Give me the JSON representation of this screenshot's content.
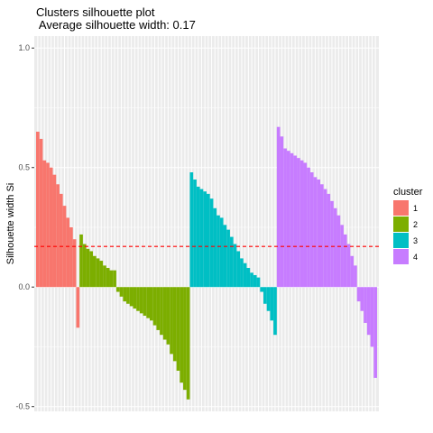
{
  "chart_data": {
    "type": "bar",
    "title": "Clusters silhouette plot",
    "subtitle": " Average silhouette width: 0.17",
    "xlabel": "",
    "ylabel": "Silhouette width Si",
    "ylim": [
      -0.52,
      1.05
    ],
    "yticks": [
      "-0.5",
      "0.0",
      "0.5",
      "1.0"
    ],
    "reference_line": {
      "value": 0.17,
      "style": "dashed",
      "color": "#FF0000"
    },
    "grid": true,
    "legend": {
      "title": "cluster",
      "position": "right"
    },
    "series": [
      {
        "name": "1",
        "color": "#F8766D",
        "values": [
          0.65,
          0.62,
          0.53,
          0.52,
          0.5,
          0.47,
          0.43,
          0.39,
          0.34,
          0.29,
          0.25,
          0.2,
          -0.17
        ]
      },
      {
        "name": "2",
        "color": "#7CAE00",
        "values": [
          0.22,
          0.18,
          0.16,
          0.15,
          0.13,
          0.12,
          0.11,
          0.09,
          0.08,
          0.07,
          0.07,
          -0.02,
          -0.04,
          -0.06,
          -0.07,
          -0.08,
          -0.09,
          -0.1,
          -0.11,
          -0.12,
          -0.13,
          -0.14,
          -0.16,
          -0.18,
          -0.2,
          -0.22,
          -0.24,
          -0.28,
          -0.31,
          -0.35,
          -0.4,
          -0.43,
          -0.47
        ]
      },
      {
        "name": "3",
        "color": "#00BFC4",
        "values": [
          0.48,
          0.45,
          0.42,
          0.41,
          0.4,
          0.39,
          0.37,
          0.33,
          0.3,
          0.29,
          0.26,
          0.24,
          0.21,
          0.18,
          0.15,
          0.12,
          0.1,
          0.08,
          0.06,
          0.05,
          0.04,
          -0.02,
          -0.07,
          -0.1,
          -0.14,
          -0.2
        ]
      },
      {
        "name": "4",
        "color": "#C77CFF",
        "values": [
          0.67,
          0.63,
          0.58,
          0.57,
          0.56,
          0.55,
          0.54,
          0.53,
          0.52,
          0.5,
          0.48,
          0.46,
          0.45,
          0.43,
          0.41,
          0.39,
          0.36,
          0.33,
          0.3,
          0.26,
          0.22,
          0.18,
          0.13,
          0.09,
          -0.06,
          -0.1,
          -0.15,
          -0.2,
          -0.25,
          -0.38
        ]
      }
    ]
  }
}
